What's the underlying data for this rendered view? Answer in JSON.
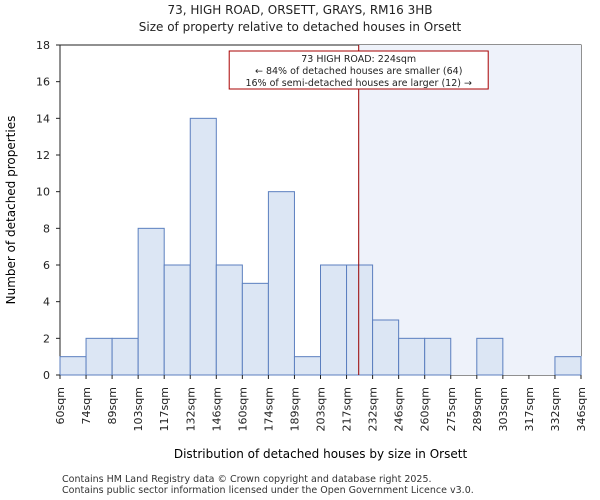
{
  "chart_data": {
    "type": "bar",
    "title_line1": "73, HIGH ROAD, ORSETT, GRAYS, RM16 3HB",
    "title_line2": "Size of property relative to detached houses in Orsett",
    "xlabel": "Distribution of detached houses by size in Orsett",
    "ylabel": "Number of detached properties",
    "bin_edges": [
      60,
      74,
      89,
      103,
      117,
      132,
      146,
      160,
      174,
      189,
      203,
      217,
      232,
      246,
      260,
      275,
      289,
      303,
      317,
      332,
      346
    ],
    "x_tick_labels": [
      "60sqm",
      "74sqm",
      "89sqm",
      "103sqm",
      "117sqm",
      "132sqm",
      "146sqm",
      "160sqm",
      "174sqm",
      "189sqm",
      "203sqm",
      "217sqm",
      "232sqm",
      "246sqm",
      "260sqm",
      "275sqm",
      "289sqm",
      "303sqm",
      "317sqm",
      "332sqm",
      "346sqm"
    ],
    "values": [
      1,
      2,
      2,
      8,
      6,
      14,
      6,
      5,
      10,
      1,
      6,
      6,
      3,
      2,
      2,
      0,
      2,
      0,
      0,
      1
    ],
    "ylim": [
      0,
      18
    ],
    "y_ticks": [
      0,
      2,
      4,
      6,
      8,
      10,
      12,
      14,
      16,
      18
    ],
    "marker_value": 224,
    "annotation_lines": [
      "73 HIGH ROAD: 224sqm",
      "← 84% of detached houses are smaller (64)",
      "16% of semi-detached houses are larger (12) →"
    ],
    "colors": {
      "bar_fill": "#dce6f4",
      "bar_stroke": "#5b7fbf",
      "highlight_region": "#eef2fa",
      "marker_line": "#990000",
      "annotation_border": "#aa0000"
    }
  },
  "footer": {
    "line1": "Contains HM Land Registry data © Crown copyright and database right 2025.",
    "line2": "Contains public sector information licensed under the Open Government Licence v3.0."
  }
}
